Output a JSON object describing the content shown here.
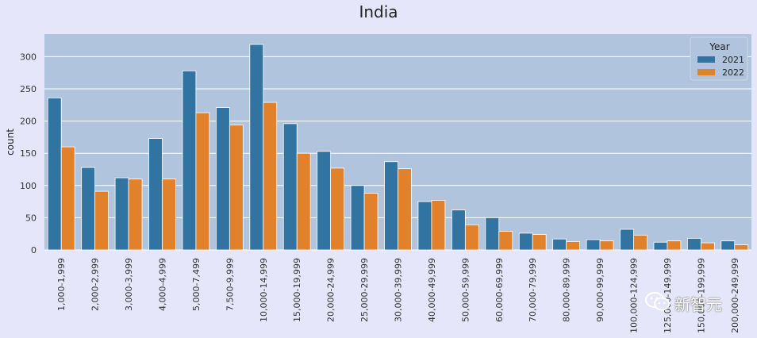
{
  "chart_data": {
    "type": "bar",
    "title": "India",
    "xlabel": "",
    "ylabel": "count",
    "ylim": [
      0,
      335
    ],
    "yticks": [
      0,
      50,
      100,
      150,
      200,
      250,
      300
    ],
    "grid": true,
    "legend": {
      "title": "Year",
      "position": "top-right"
    },
    "categories": [
      "1,000-1,999",
      "2,000-2,999",
      "3,000-3,999",
      "4,000-4,999",
      "5,000-7,499",
      "7,500-9,999",
      "10,000-14,999",
      "15,000-19,999",
      "20,000-24,999",
      "25,000-29,999",
      "30,000-39,999",
      "40,000-49,999",
      "50,000-59,999",
      "60,000-69,999",
      "70,000-79,999",
      "80,000-89,999",
      "90,000-99,999",
      "100,000-124,999",
      "125,000-149,999",
      "150,000-199,999",
      "200,000-249,999"
    ],
    "series": [
      {
        "name": "2021",
        "color": "#3274a1",
        "values": [
          236,
          128,
          112,
          173,
          278,
          221,
          319,
          196,
          153,
          100,
          137,
          75,
          62,
          50,
          26,
          17,
          16,
          32,
          12,
          18,
          14
        ]
      },
      {
        "name": "2022",
        "color": "#e1812c",
        "values": [
          160,
          91,
          110,
          110,
          213,
          194,
          229,
          150,
          127,
          88,
          126,
          77,
          39,
          29,
          24,
          13,
          14,
          23,
          14,
          11,
          8
        ]
      }
    ]
  },
  "watermark": {
    "text": "新智元",
    "icon": "wechat-icon"
  }
}
